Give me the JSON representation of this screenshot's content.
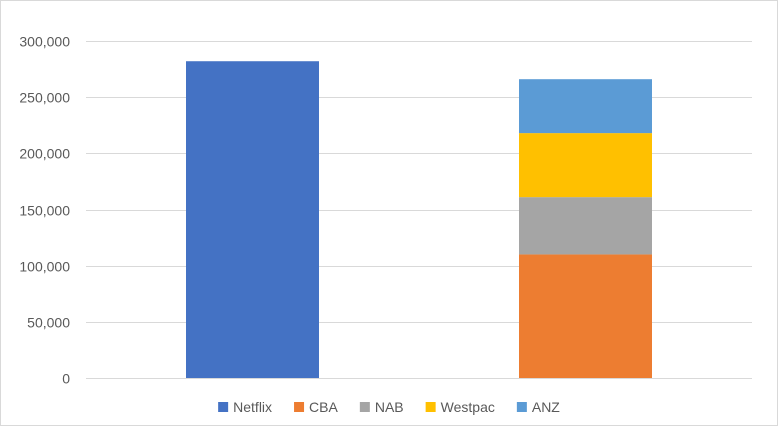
{
  "chart_data": {
    "type": "bar",
    "stacked": true,
    "categories": [
      "",
      ""
    ],
    "series": [
      {
        "name": "Netflix",
        "color": "#4472c4",
        "values": [
          282000,
          0
        ]
      },
      {
        "name": "CBA",
        "color": "#ed7d31",
        "values": [
          0,
          110000
        ]
      },
      {
        "name": "NAB",
        "color": "#a5a5a5",
        "values": [
          0,
          51000
        ]
      },
      {
        "name": "Westpac",
        "color": "#ffc000",
        "values": [
          0,
          57000
        ]
      },
      {
        "name": "ANZ",
        "color": "#5b9bd5",
        "values": [
          0,
          48000
        ]
      }
    ],
    "ylim": [
      0,
      300000
    ],
    "yticks": [
      0,
      50000,
      100000,
      150000,
      200000,
      250000,
      300000
    ],
    "ytick_labels": [
      "0",
      "50,000",
      "100,000",
      "150,000",
      "200,000",
      "250,000",
      "300,000"
    ],
    "title": "",
    "xlabel": "",
    "ylabel": "",
    "grid": true,
    "legend_position": "bottom"
  }
}
